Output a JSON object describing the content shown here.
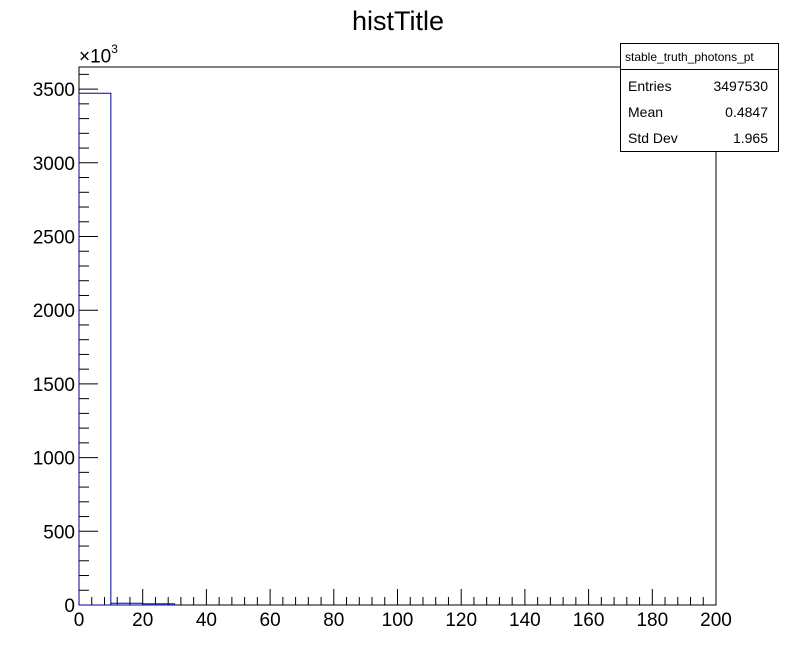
{
  "title": "histTitle",
  "stats": {
    "name": "stable_truth_photons_pt",
    "rows": [
      {
        "label": "Entries",
        "value": "3497530"
      },
      {
        "label": "Mean",
        "value": "0.4847"
      },
      {
        "label": "Std Dev",
        "value": "1.965"
      }
    ]
  },
  "y_exponent": {
    "base": "×10",
    "power": "3"
  },
  "chart_data": {
    "type": "bar",
    "title": "histTitle",
    "xlabel": "",
    "ylabel": "",
    "xlim": [
      0,
      200
    ],
    "ylim": [
      0,
      3650
    ],
    "x_ticks": [
      0,
      20,
      40,
      60,
      80,
      100,
      120,
      140,
      160,
      180,
      200
    ],
    "y_ticks": [
      0,
      500,
      1000,
      1500,
      2000,
      2500,
      3000,
      3500
    ],
    "bin_width": 10,
    "bin_edges": [
      0,
      10,
      20,
      30,
      40,
      50,
      60,
      70,
      80,
      90,
      100,
      110,
      120,
      130,
      140,
      150,
      160,
      170,
      180,
      190,
      200
    ],
    "values": [
      3472,
      12,
      8,
      0,
      0,
      0,
      0,
      0,
      0,
      0,
      0,
      0,
      0,
      0,
      0,
      0,
      0,
      0,
      0,
      0
    ],
    "line_color": "#000099",
    "grid": false
  }
}
